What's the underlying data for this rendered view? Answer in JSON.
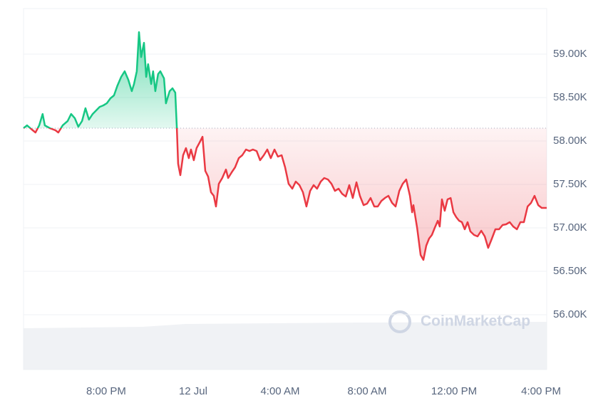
{
  "chart_data": {
    "type": "line",
    "watermark": "CoinMarketCap",
    "x": [
      -7.8,
      -7.64,
      -7.41,
      -7.25,
      -7.08,
      -6.92,
      -6.82,
      -6.59,
      -6.33,
      -6.2,
      -6.0,
      -5.77,
      -5.61,
      -5.44,
      -5.28,
      -5.11,
      -4.95,
      -4.79,
      -4.62,
      -4.46,
      -4.3,
      -4.13,
      -3.97,
      -3.8,
      -3.64,
      -3.48,
      -3.31,
      -3.15,
      -2.98,
      -2.82,
      -2.72,
      -2.59,
      -2.49,
      -2.39,
      -2.26,
      -2.16,
      -2.07,
      -1.93,
      -1.84,
      -1.74,
      -1.61,
      -1.51,
      -1.34,
      -1.25,
      -1.08,
      -0.95,
      -0.82,
      -0.75,
      -0.69,
      -0.59,
      -0.46,
      -0.33,
      -0.2,
      -0.1,
      0.03,
      0.16,
      0.3,
      0.43,
      0.56,
      0.69,
      0.82,
      0.95,
      1.05,
      1.18,
      1.34,
      1.51,
      1.61,
      1.77,
      1.93,
      2.1,
      2.26,
      2.43,
      2.59,
      2.75,
      2.92,
      3.08,
      3.25,
      3.41,
      3.57,
      3.74,
      3.9,
      4.07,
      4.23,
      4.39,
      4.56,
      4.72,
      4.89,
      5.05,
      5.21,
      5.38,
      5.54,
      5.7,
      5.87,
      6.03,
      6.2,
      6.36,
      6.52,
      6.69,
      6.85,
      7.02,
      7.18,
      7.34,
      7.51,
      7.67,
      7.84,
      8.0,
      8.16,
      8.33,
      8.49,
      8.66,
      8.82,
      8.98,
      9.15,
      9.31,
      9.48,
      9.64,
      9.8,
      9.97,
      10.07,
      10.13,
      10.3,
      10.46,
      10.59,
      10.72,
      10.85,
      10.98,
      11.11,
      11.25,
      11.34,
      11.44,
      11.57,
      11.7,
      11.84,
      11.97,
      12.1,
      12.23,
      12.36,
      12.49,
      12.62,
      12.75,
      12.92,
      13.08,
      13.25,
      13.41,
      13.57,
      13.74,
      13.9,
      14.07,
      14.23,
      14.39,
      14.56,
      14.72,
      14.89,
      15.05,
      15.21,
      15.38,
      15.54,
      15.7,
      15.87,
      16.03,
      16.26
    ],
    "series": [
      {
        "values": [
          58148,
          58180,
          58131,
          58098,
          58180,
          58311,
          58180,
          58148,
          58123,
          58098,
          58180,
          58230,
          58311,
          58262,
          58164,
          58230,
          58377,
          58246,
          58311,
          58352,
          58393,
          58410,
          58434,
          58492,
          58525,
          58639,
          58738,
          58803,
          58705,
          58574,
          58656,
          58803,
          59254,
          58967,
          59131,
          58738,
          58885,
          58656,
          58803,
          58574,
          58771,
          58803,
          58721,
          58434,
          58574,
          58607,
          58557,
          58148,
          57738,
          57607,
          57836,
          57918,
          57803,
          57902,
          57779,
          57918,
          57984,
          58049,
          57656,
          57590,
          57410,
          57369,
          57246,
          57508,
          57574,
          57672,
          57574,
          57639,
          57697,
          57803,
          57836,
          57902,
          57885,
          57902,
          57885,
          57779,
          57836,
          57902,
          57803,
          57902,
          57820,
          57836,
          57697,
          57508,
          57451,
          57533,
          57492,
          57410,
          57246,
          57426,
          57492,
          57451,
          57533,
          57574,
          57557,
          57508,
          57426,
          57451,
          57393,
          57361,
          57492,
          57344,
          57525,
          57369,
          57262,
          57279,
          57344,
          57246,
          57246,
          57311,
          57344,
          57369,
          57287,
          57246,
          57426,
          57508,
          57557,
          57369,
          57180,
          57262,
          57000,
          56688,
          56631,
          56795,
          56877,
          56918,
          57000,
          57082,
          57016,
          57328,
          57197,
          57328,
          57344,
          57180,
          57123,
          57082,
          57066,
          56984,
          57066,
          56959,
          56918,
          56902,
          56967,
          56902,
          56770,
          56877,
          56984,
          56984,
          57033,
          57041,
          57066,
          57016,
          56984,
          57066,
          57066,
          57246,
          57287,
          57369,
          57262,
          57230,
          57230
        ]
      }
    ],
    "reference_line": 58148,
    "up_color": "#16c784",
    "down_color": "#ea3943",
    "xlim": [
      -7.8,
      16.26
    ],
    "xticks": [
      {
        "value": -4,
        "label": "8:00 PM"
      },
      {
        "value": 0,
        "label": "12 Jul"
      },
      {
        "value": 4,
        "label": "4:00 AM"
      },
      {
        "value": 8,
        "label": "8:00 AM"
      },
      {
        "value": 12,
        "label": "12:00 PM"
      },
      {
        "value": 16,
        "label": "4:00 PM"
      }
    ],
    "ylim": [
      55369,
      59525
    ],
    "yticks": [
      {
        "value": 56000,
        "label": "56.00K"
      },
      {
        "value": 56500,
        "label": "56.50K"
      },
      {
        "value": 57000,
        "label": "57.00K"
      },
      {
        "value": 57500,
        "label": "57.50K"
      },
      {
        "value": 58000,
        "label": "58.00K"
      },
      {
        "value": 58500,
        "label": "58.50K"
      },
      {
        "value": 59000,
        "label": "59.00K"
      }
    ],
    "grid": true
  }
}
